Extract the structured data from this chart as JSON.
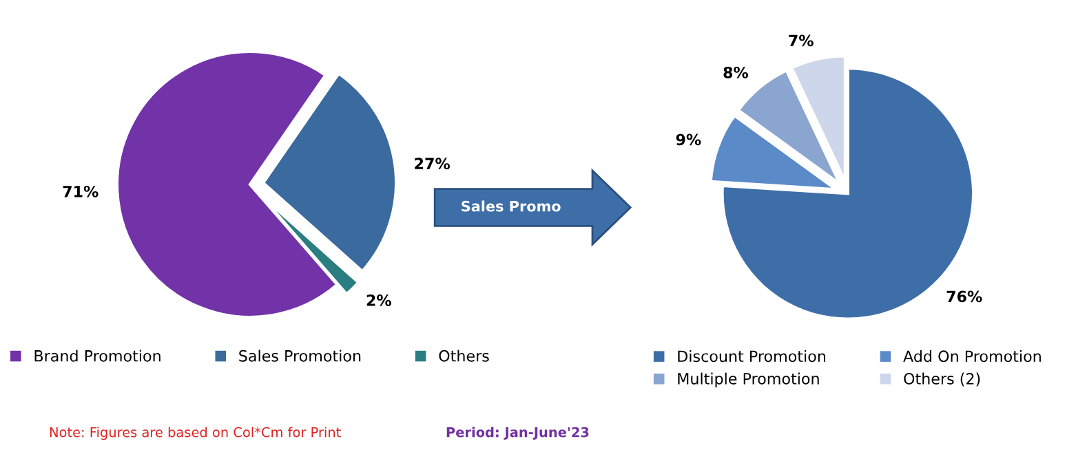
{
  "chart_data": [
    {
      "type": "pie",
      "categories": [
        "Brand Promotion",
        "Sales Promotion",
        "Others"
      ],
      "values": [
        71,
        27,
        2
      ],
      "colors": [
        "#7232a8",
        "#3a6a9e",
        "#2a7d80"
      ],
      "value_labels": [
        "71%",
        "27%",
        "2%"
      ],
      "legend": "bottom",
      "annotations": [
        "Sales Promo",
        "Note: Figures are based on Col*Cm for Print",
        "Period: Jan-June'23"
      ]
    },
    {
      "type": "pie",
      "categories": [
        "Discount Promotion",
        "Add On Promotion",
        "Multiple Promotion",
        "Others (2)"
      ],
      "values": [
        76,
        9,
        8,
        7
      ],
      "colors": [
        "#3e6ea8",
        "#5a8ac8",
        "#8aa5cf",
        "#cdd6ea"
      ],
      "value_labels": [
        "76%",
        "9%",
        "8%",
        "7%"
      ],
      "legend": "bottom"
    }
  ]
}
